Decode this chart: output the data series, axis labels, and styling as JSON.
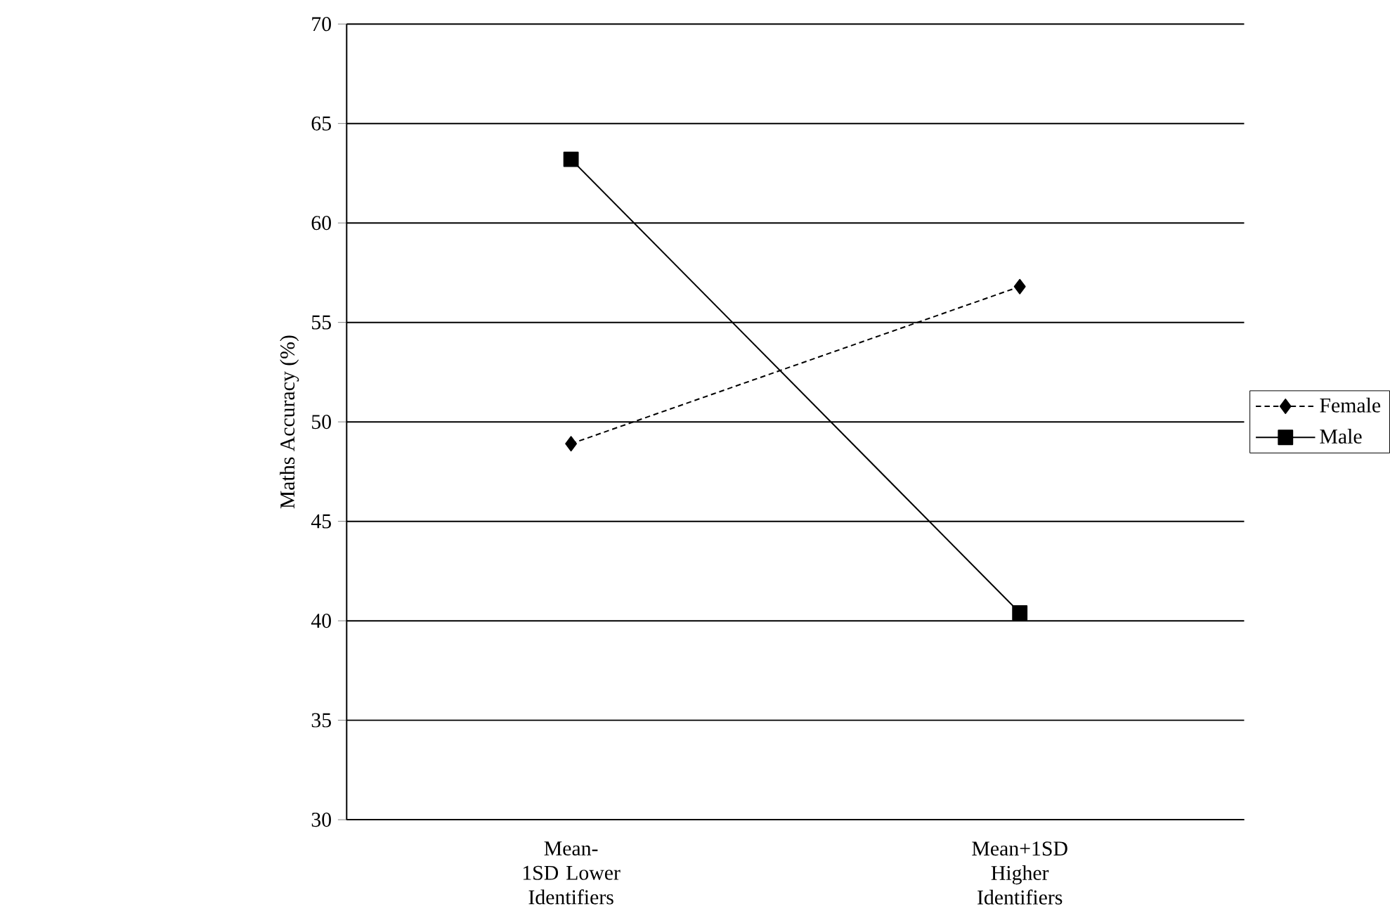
{
  "chart_data": {
    "type": "line",
    "ylabel": "Maths Accuracy (%)",
    "categories": [
      "Mean- 1SD Lower Identifiers",
      "Mean+1SD Higher Identifiers"
    ],
    "series": [
      {
        "name": "Female",
        "color": "#000000",
        "values": [
          48.9,
          56.8
        ],
        "marker": "diamond",
        "line_style": "dotted"
      },
      {
        "name": "Male",
        "color": "#000000",
        "values": [
          63.2,
          40.4
        ],
        "marker": "square",
        "line_style": "solid"
      }
    ],
    "ylim": [
      30,
      70
    ],
    "yticks": [
      30,
      35,
      40,
      45,
      50,
      55,
      60,
      65,
      70
    ],
    "grid": "y",
    "legend": "right"
  }
}
